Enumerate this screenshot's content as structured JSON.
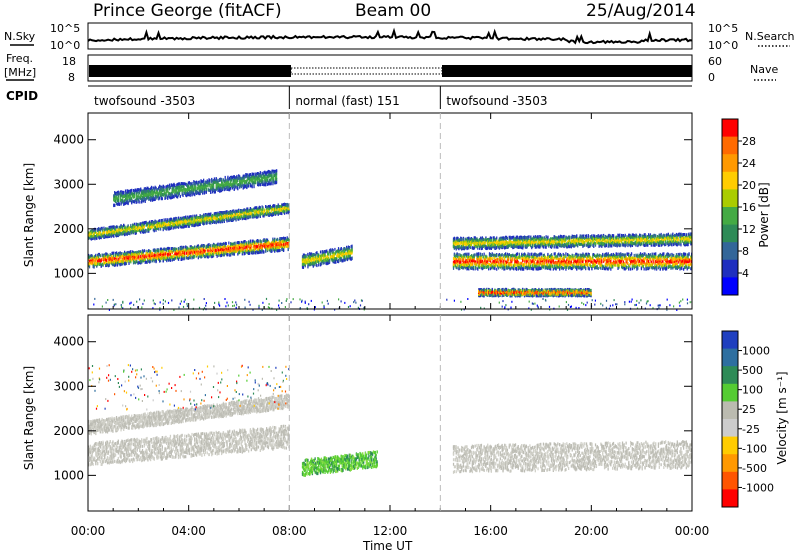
{
  "header": {
    "station": "Prince George (fitACF)",
    "beam": "Beam 00",
    "date": "25/Aug/2014"
  },
  "labels": {
    "nsky": "N.Sky",
    "nsearch": "N.Search",
    "freq_line1": "Freq.",
    "freq_line2": "[MHz]",
    "nave": "Nave",
    "cpid": "CPID",
    "tick_1e5": "10^5",
    "tick_1e0": "10^0",
    "freq_ticks": [
      "18",
      "8"
    ],
    "nave_ticks": [
      "60",
      "0"
    ]
  },
  "cpid_segments": [
    {
      "label": "twofsound -3503",
      "start_h": 0,
      "end_h": 8
    },
    {
      "label": "normal (fast) 151",
      "start_h": 8,
      "end_h": 14
    },
    {
      "label": "twofsound -3503",
      "start_h": 14,
      "end_h": 24
    }
  ],
  "x_axis": {
    "label": "Time UT",
    "ticks": [
      "00:00",
      "04:00",
      "08:00",
      "12:00",
      "16:00",
      "20:00",
      "00:00"
    ],
    "range_h": [
      0,
      24
    ]
  },
  "chart_data": [
    {
      "type": "heatmap",
      "name": "power",
      "ylabel": "Slant Range [km]",
      "yticks": [
        1000,
        2000,
        3000,
        4000
      ],
      "ylim": [
        200,
        4600
      ],
      "colorbar": {
        "label": "Power [dB]",
        "ticks": [
          "28",
          "24",
          "20",
          "16",
          "12",
          "8",
          "4"
        ],
        "colors": [
          "#ff0000",
          "#ff6a00",
          "#ff9900",
          "#ffcc00",
          "#aacc00",
          "#44aa44",
          "#2e8b57",
          "#336699",
          "#1f2fbf",
          "#0000ff"
        ]
      },
      "echo_bands": [
        {
          "start_h": 0.0,
          "end_h": 8.0,
          "range_start_km": 1300,
          "range_end_km": 1700,
          "width_km": 280,
          "level": "high"
        },
        {
          "start_h": 0.0,
          "end_h": 8.0,
          "range_start_km": 1900,
          "range_end_km": 2500,
          "width_km": 220,
          "level": "mid"
        },
        {
          "start_h": 1.0,
          "end_h": 7.5,
          "range_start_km": 2700,
          "range_end_km": 3200,
          "width_km": 300,
          "level": "low"
        },
        {
          "start_h": 8.5,
          "end_h": 10.5,
          "range_start_km": 1300,
          "range_end_km": 1500,
          "width_km": 300,
          "level": "mid"
        },
        {
          "start_h": 14.5,
          "end_h": 24.0,
          "range_start_km": 1300,
          "range_end_km": 1300,
          "width_km": 350,
          "level": "high"
        },
        {
          "start_h": 14.5,
          "end_h": 24.0,
          "range_start_km": 1700,
          "range_end_km": 1800,
          "width_km": 250,
          "level": "mid"
        },
        {
          "start_h": 15.5,
          "end_h": 20.0,
          "range_start_km": 600,
          "range_end_km": 600,
          "width_km": 150,
          "level": "high"
        }
      ]
    },
    {
      "type": "heatmap",
      "name": "velocity",
      "ylabel": "Slant Range [km]",
      "yticks": [
        1000,
        2000,
        3000,
        4000
      ],
      "ylim": [
        200,
        4600
      ],
      "colorbar": {
        "label": "Velocity [m s⁻¹]",
        "ticks": [
          "1000",
          "500",
          "100",
          "25",
          "-25",
          "-100",
          "-500",
          "-1000"
        ],
        "colors": [
          "#1f3fbf",
          "#2e6fa0",
          "#2e8b57",
          "#55cc33",
          "#bbbbb0",
          "#cccccc",
          "#ffcc00",
          "#ff9900",
          "#ff5500",
          "#ff0000"
        ]
      },
      "echo_bands": [
        {
          "start_h": 0.0,
          "end_h": 8.0,
          "range_start_km": 1500,
          "range_end_km": 1900,
          "width_km": 500,
          "level": "gs"
        },
        {
          "start_h": 0.0,
          "end_h": 8.0,
          "range_start_km": 2100,
          "range_end_km": 2700,
          "width_km": 300,
          "level": "gs"
        },
        {
          "start_h": 8.5,
          "end_h": 11.5,
          "range_start_km": 1200,
          "range_end_km": 1400,
          "width_km": 350,
          "level": "pos"
        },
        {
          "start_h": 14.5,
          "end_h": 24.0,
          "range_start_km": 1400,
          "range_end_km": 1500,
          "width_km": 600,
          "level": "gs"
        }
      ]
    }
  ]
}
